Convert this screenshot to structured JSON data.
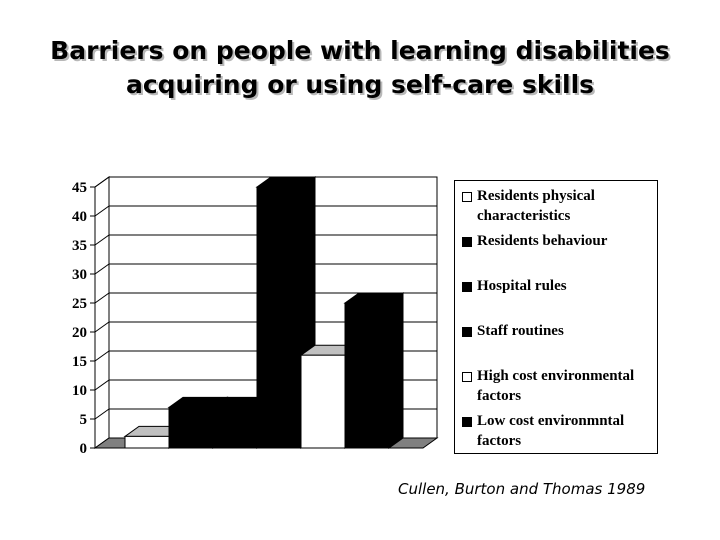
{
  "title": {
    "line1": "Barriers on people with learning disabilities",
    "line2": "acquiring or using self-care skills"
  },
  "citation": "Cullen, Burton and Thomas 1989",
  "colors": {
    "ink": "#000000",
    "fill_white": "#ffffff",
    "shade": "#c0c0c0",
    "title_shadow": "#b8b8b8"
  },
  "chart_data": {
    "type": "bar",
    "style": "3d-step",
    "title": "",
    "xlabel": "",
    "ylabel": "",
    "ylim": [
      0,
      45
    ],
    "yticks": [
      0,
      5,
      10,
      15,
      20,
      25,
      30,
      35,
      40,
      45
    ],
    "grid": true,
    "legend_position": "right",
    "categories": [
      ""
    ],
    "series": [
      {
        "name": "Residents physical characteristics",
        "values": [
          2
        ],
        "color": "#ffffff"
      },
      {
        "name": "Residents behaviour",
        "values": [
          7
        ],
        "color": "#000000"
      },
      {
        "name": "Hospital rules",
        "values": [
          7
        ],
        "color": "#000000"
      },
      {
        "name": "Staff routines",
        "values": [
          45
        ],
        "color": "#000000"
      },
      {
        "name": "High cost environmental factors",
        "values": [
          16
        ],
        "color": "#ffffff"
      },
      {
        "name": "Low cost environmntal factors",
        "values": [
          25
        ],
        "color": "#000000"
      }
    ]
  }
}
